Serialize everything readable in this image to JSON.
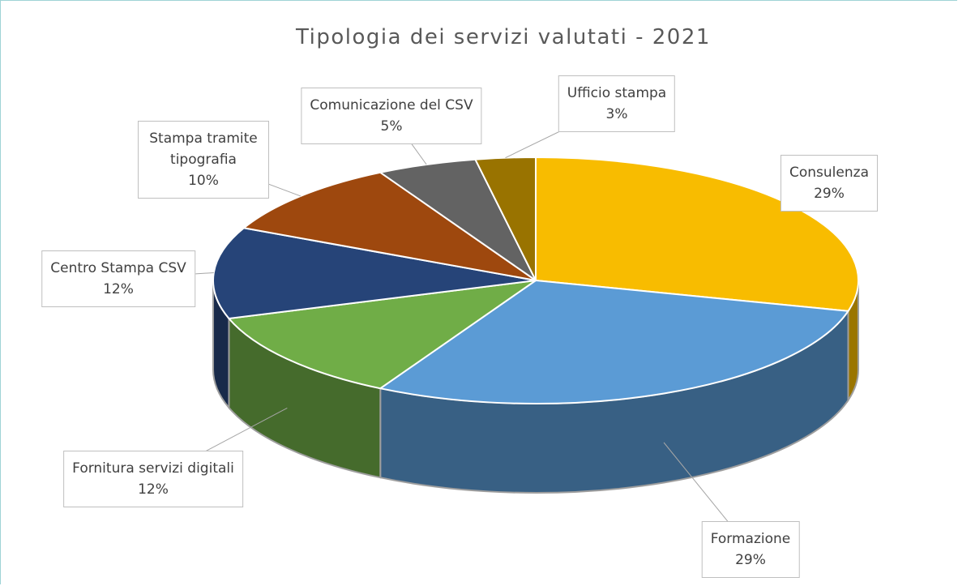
{
  "chart_data": {
    "type": "pie3d",
    "title": "Tipologia dei servizi valutati - 2021",
    "categories": [
      "Consulenza",
      "Formazione",
      "Fornitura servizi digitali",
      "Centro Stampa CSV",
      "Stampa tramite tipografia",
      "Comunicazione del CSV",
      "Ufficio stampa"
    ],
    "values": [
      29,
      29,
      12,
      12,
      10,
      5,
      3
    ],
    "value_labels": [
      "29%",
      "29%",
      "12%",
      "12%",
      "10%",
      "5%",
      "3%"
    ],
    "colors": [
      "#f8bc00",
      "#5b9bd5",
      "#70ad47",
      "#264478",
      "#9e480e",
      "#636363",
      "#997300"
    ]
  }
}
